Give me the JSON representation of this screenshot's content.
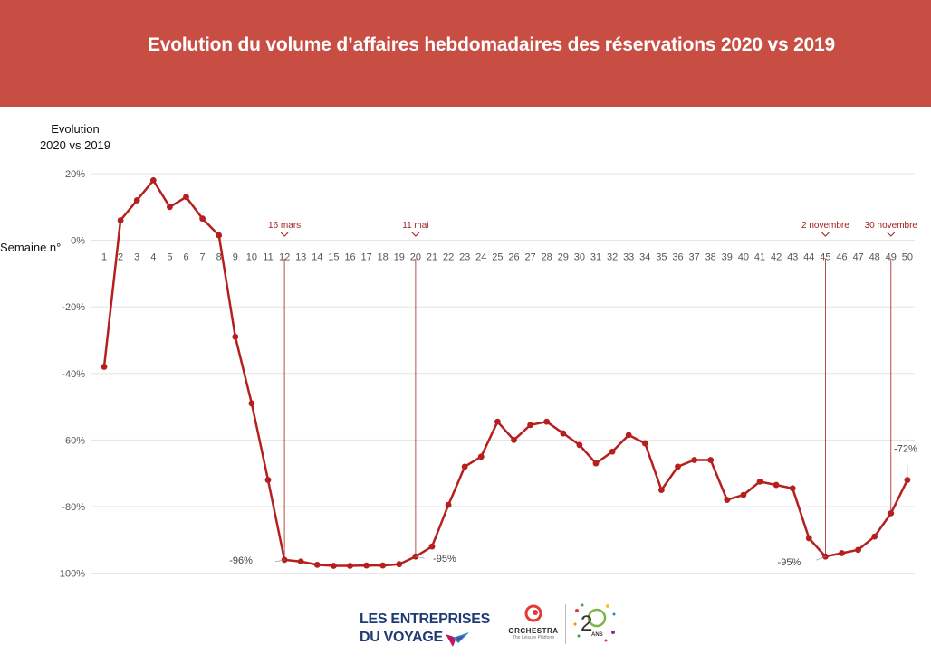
{
  "header": {
    "title": "Evolution du volume d’affaires hebdomadaires des réservations 2020 vs 2019"
  },
  "colors": {
    "banner": "#c84e44",
    "line": "#b5201f",
    "annotation": "#a3201c",
    "grid": "#e3e3e3"
  },
  "chart_data": {
    "type": "line",
    "title": "Evolution du volume d’affaires hebdomadaires des réservations 2020 vs 2019",
    "ylabel_lines": [
      "Evolution",
      "2020 vs 2019"
    ],
    "xlabel": "Semaine n°",
    "ylim": [
      -100,
      20
    ],
    "yticks": [
      20,
      0,
      -20,
      -40,
      -60,
      -80,
      -100
    ],
    "ytick_labels": [
      "20%",
      "0%",
      "-20%",
      "-40%",
      "-60%",
      "-80%",
      "-100%"
    ],
    "grid": true,
    "x": [
      1,
      2,
      3,
      4,
      5,
      6,
      7,
      8,
      9,
      10,
      11,
      12,
      13,
      14,
      15,
      16,
      17,
      18,
      19,
      20,
      21,
      22,
      23,
      24,
      25,
      26,
      27,
      28,
      29,
      30,
      31,
      32,
      33,
      34,
      35,
      36,
      37,
      38,
      39,
      40,
      41,
      42,
      43,
      44,
      45,
      46,
      47,
      48,
      49,
      50
    ],
    "series": [
      {
        "values": [
          -38,
          6,
          12,
          18,
          10,
          13,
          6.5,
          1.5,
          -29,
          -49,
          -72,
          -96,
          -96.5,
          -97.5,
          -97.8,
          -97.8,
          -97.7,
          -97.7,
          -97.3,
          -95,
          -92,
          -79.5,
          -68,
          -65,
          -54.5,
          -60,
          -55.5,
          -54.5,
          -58,
          -61.5,
          -67,
          -63.5,
          -58.5,
          -61,
          -75,
          -68,
          -66,
          -66,
          -78,
          -76.5,
          -72.5,
          -73.5,
          -74.5,
          -89.5,
          -95,
          -94,
          -93,
          -89,
          -82,
          -72
        ]
      }
    ],
    "annotations": [
      {
        "x": 12,
        "label": "16 mars"
      },
      {
        "x": 20,
        "label": "11 mai"
      },
      {
        "x": 45,
        "label": "2 novembre"
      },
      {
        "x": 49,
        "label": "30 novembre"
      }
    ],
    "data_labels": [
      {
        "x": 12,
        "text": "-96%"
      },
      {
        "x": 20,
        "text": "-95%"
      },
      {
        "x": 45,
        "text": "-95%"
      },
      {
        "x": 50,
        "text": "-72%"
      }
    ]
  },
  "logos": {
    "left_line1": "LES ENTREPRISES",
    "left_line2": "DU VOYAGE",
    "orchestra_name": "ORCHESTRA",
    "orchestra_tagline": "The Leisure Platform",
    "anniversary_digit": "2",
    "anniversary_unit": "ANS"
  }
}
